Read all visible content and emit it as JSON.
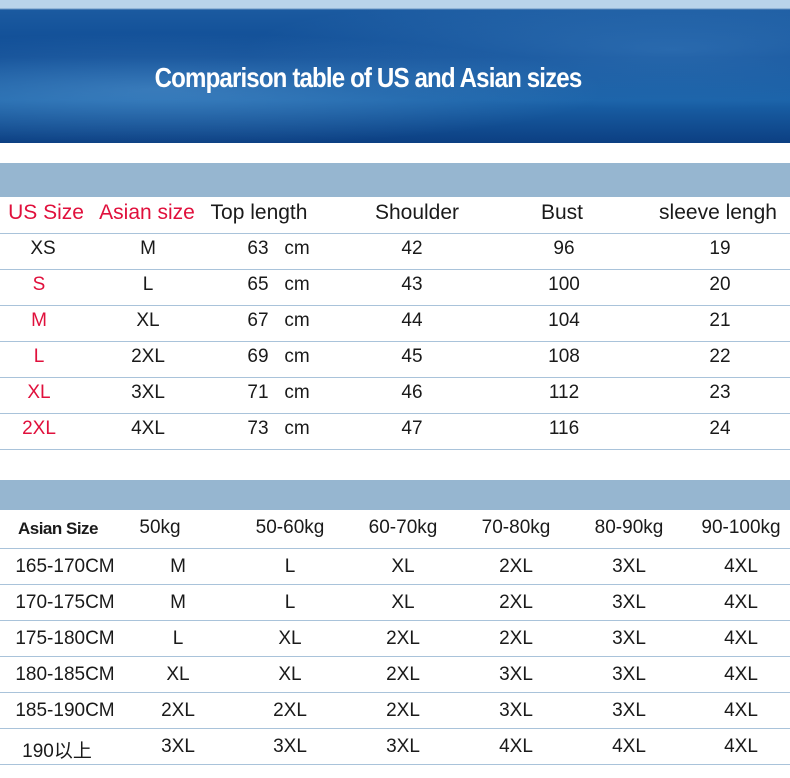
{
  "title": "Comparison table of US and Asian sizes",
  "colors": {
    "banner": "#0d4a93",
    "bar": "#96b6d0",
    "accent_red": "#e0103c"
  },
  "table1": {
    "headers": [
      "US Size",
      "Asian size",
      "Top length",
      "Shoulder",
      "Bust",
      "sleeve lengh"
    ],
    "unit": "cm",
    "rows": [
      [
        "XS",
        "M",
        "63",
        "42",
        "96",
        "19"
      ],
      [
        "S",
        "L",
        "65",
        "43",
        "100",
        "20"
      ],
      [
        "M",
        "XL",
        "67",
        "44",
        "104",
        "21"
      ],
      [
        "L",
        "2XL",
        "69",
        "45",
        "108",
        "22"
      ],
      [
        "XL",
        "3XL",
        "71",
        "46",
        "112",
        "23"
      ],
      [
        "2XL",
        "4XL",
        "73",
        "47",
        "116",
        "24"
      ]
    ]
  },
  "table2": {
    "headers": [
      "Asian Size",
      "50kg",
      "50-60kg",
      "60-70kg",
      "70-80kg",
      "80-90kg",
      "90-100kg"
    ],
    "rows": [
      [
        "165-170CM",
        "M",
        "L",
        "XL",
        "2XL",
        "3XL",
        "4XL"
      ],
      [
        "170-175CM",
        "M",
        "L",
        "XL",
        "2XL",
        "3XL",
        "4XL"
      ],
      [
        "175-180CM",
        "L",
        "XL",
        "2XL",
        "2XL",
        "3XL",
        "4XL"
      ],
      [
        "180-185CM",
        "XL",
        "XL",
        "2XL",
        "3XL",
        "3XL",
        "4XL"
      ],
      [
        "185-190CM",
        "2XL",
        "2XL",
        "2XL",
        "3XL",
        "3XL",
        "4XL"
      ],
      [
        "190以上",
        "3XL",
        "3XL",
        "3XL",
        "4XL",
        "4XL",
        "4XL"
      ]
    ]
  }
}
